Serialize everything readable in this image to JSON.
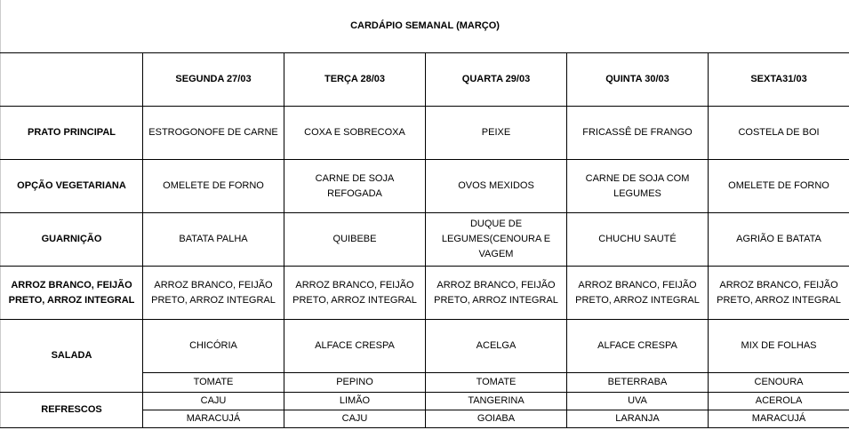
{
  "title": "CARDÁPIO SEMANAL (MARÇO)",
  "days": [
    "SEGUNDA 27/03",
    "TERÇA 28/03",
    "QUARTA 29/03",
    "QUINTA 30/03",
    "SEXTA31/03"
  ],
  "rows": {
    "prato_principal": {
      "label": "PRATO PRINCIPAL",
      "values": [
        "ESTROGONOFE DE CARNE",
        "COXA E SOBRECOXA",
        "PEIXE",
        "FRICASSÊ DE FRANGO",
        "COSTELA DE BOI"
      ]
    },
    "opcao_vegetariana": {
      "label": "OPÇÃO VEGETARIANA",
      "values": [
        "OMELETE DE FORNO",
        "CARNE DE SOJA REFOGADA",
        "OVOS MEXIDOS",
        "CARNE DE SOJA COM LEGUMES",
        "OMELETE DE FORNO"
      ]
    },
    "guarnicao": {
      "label": "GUARNIÇÃO",
      "values": [
        "BATATA PALHA",
        "QUIBEBE",
        "DUQUE DE LEGUMES(CENOURA E VAGEM",
        "CHUCHU SAUTÉ",
        "AGRIÃO E BATATA"
      ]
    },
    "arroz": {
      "label": "ARROZ BRANCO, FEIJÃO PRETO, ARROZ INTEGRAL",
      "values": [
        "ARROZ BRANCO, FEIJÃO PRETO, ARROZ INTEGRAL",
        "ARROZ BRANCO, FEIJÃO PRETO, ARROZ INTEGRAL",
        "ARROZ BRANCO, FEIJÃO PRETO, ARROZ INTEGRAL",
        "ARROZ BRANCO, FEIJÃO PRETO, ARROZ INTEGRAL",
        "ARROZ BRANCO, FEIJÃO PRETO, ARROZ INTEGRAL"
      ]
    },
    "salada": {
      "label": "SALADA",
      "values_1": [
        "CHICÓRIA",
        "ALFACE CRESPA",
        "ACELGA",
        "ALFACE CRESPA",
        "MIX DE FOLHAS"
      ],
      "values_2": [
        "TOMATE",
        "PEPINO",
        "TOMATE",
        "BETERRABA",
        "CENOURA"
      ]
    },
    "refrescos": {
      "label": "REFRESCOS",
      "values_1": [
        "CAJU",
        "LIMÃO",
        "TANGERINA",
        "UVA",
        "ACEROLA"
      ],
      "values_2": [
        "MARACUJÁ",
        "CAJU",
        "GOIABA",
        "LARANJA",
        "MARACUJÁ"
      ]
    }
  }
}
